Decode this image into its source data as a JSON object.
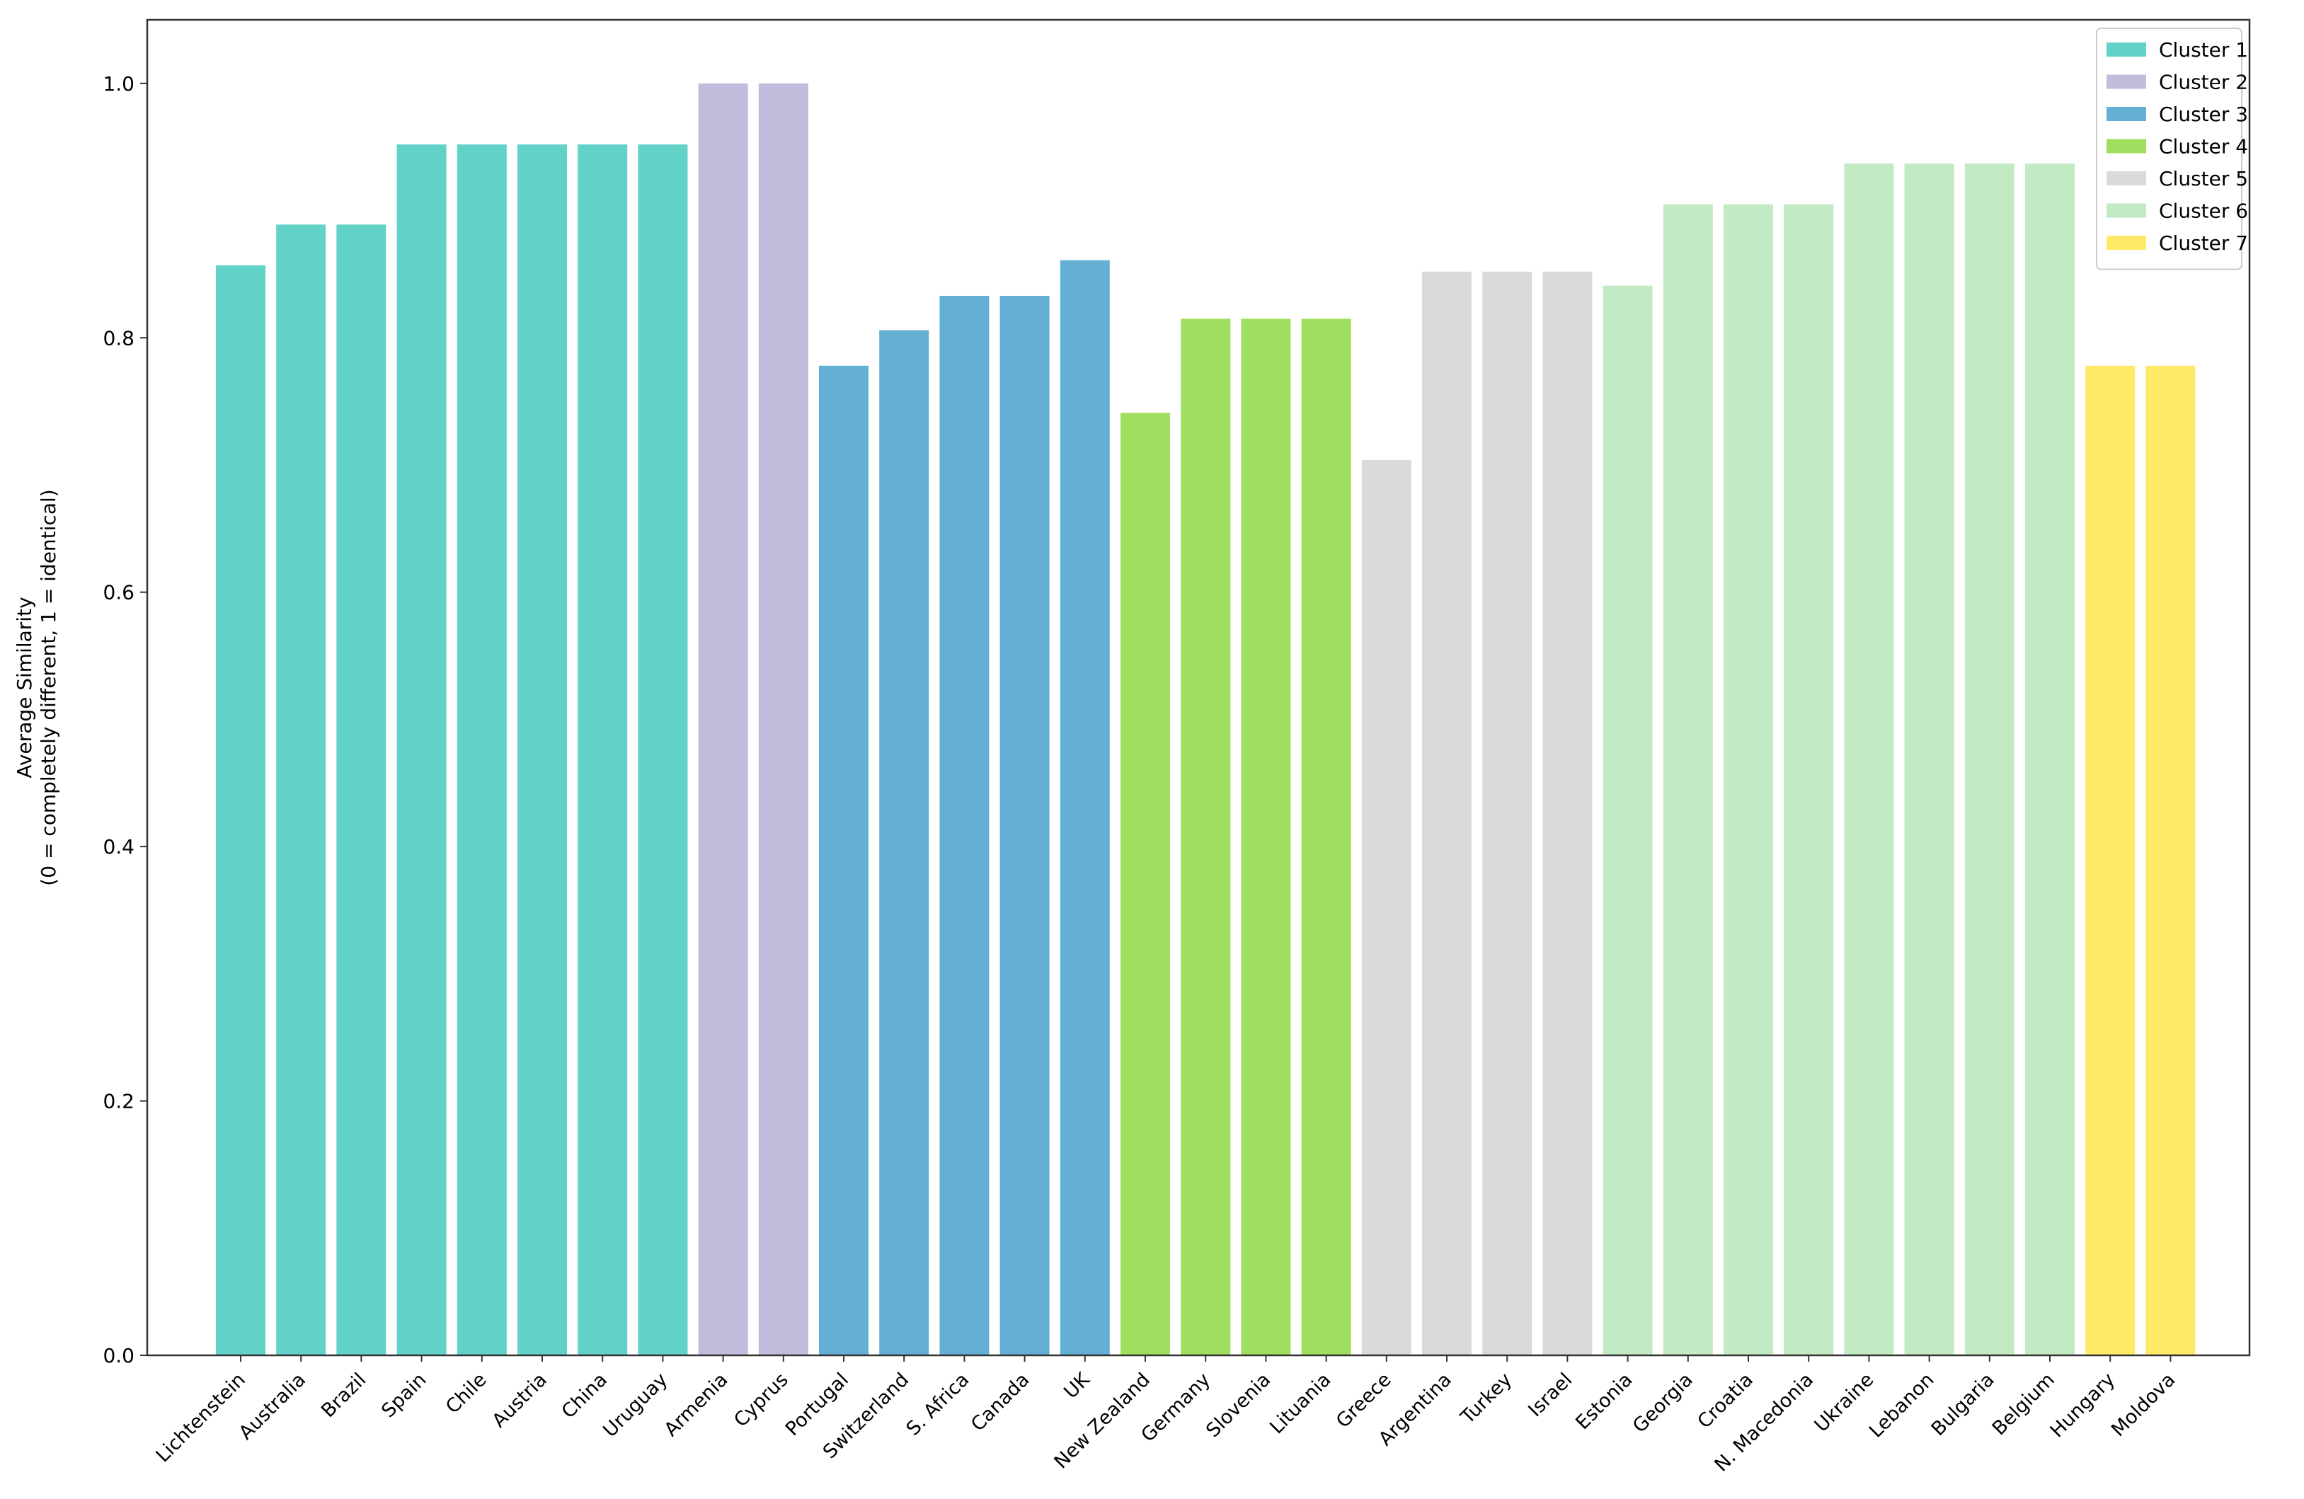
{
  "chart_data": {
    "type": "bar",
    "title": "",
    "xlabel": "",
    "ylabel_line1": "Average Similarity",
    "ylabel_line2": "(0 = completely different, 1 = identical)",
    "ylim": [
      0,
      1.05
    ],
    "yticks": [
      "0.0",
      "0.2",
      "0.4",
      "0.6",
      "0.8",
      "1.0"
    ],
    "ytick_values": [
      0,
      0.2,
      0.4,
      0.6,
      0.8,
      1.0
    ],
    "grid": false,
    "legend_position": "top-right",
    "clusters": [
      {
        "name": "Cluster 1",
        "color": "#62d2c8"
      },
      {
        "name": "Cluster 2",
        "color": "#c0bcdc"
      },
      {
        "name": "Cluster 3",
        "color": "#63b0d4"
      },
      {
        "name": "Cluster 4",
        "color": "#a0de60"
      },
      {
        "name": "Cluster 5",
        "color": "#dadada"
      },
      {
        "name": "Cluster 6",
        "color": "#c2ebc4"
      },
      {
        "name": "Cluster 7",
        "color": "#ffe967"
      }
    ],
    "bars": [
      {
        "category": "Lichtenstein",
        "value": 0.857,
        "cluster": 0
      },
      {
        "category": "Australia",
        "value": 0.889,
        "cluster": 0
      },
      {
        "category": "Brazil",
        "value": 0.889,
        "cluster": 0
      },
      {
        "category": "Spain",
        "value": 0.952,
        "cluster": 0
      },
      {
        "category": "Chile",
        "value": 0.952,
        "cluster": 0
      },
      {
        "category": "Austria",
        "value": 0.952,
        "cluster": 0
      },
      {
        "category": "China",
        "value": 0.952,
        "cluster": 0
      },
      {
        "category": "Uruguay",
        "value": 0.952,
        "cluster": 0
      },
      {
        "category": "Armenia",
        "value": 1.0,
        "cluster": 1
      },
      {
        "category": "Cyprus",
        "value": 1.0,
        "cluster": 1
      },
      {
        "category": "Portugal",
        "value": 0.778,
        "cluster": 2
      },
      {
        "category": "Switzerland",
        "value": 0.806,
        "cluster": 2
      },
      {
        "category": "S. Africa",
        "value": 0.833,
        "cluster": 2
      },
      {
        "category": "Canada",
        "value": 0.833,
        "cluster": 2
      },
      {
        "category": "UK",
        "value": 0.861,
        "cluster": 2
      },
      {
        "category": "New Zealand",
        "value": 0.741,
        "cluster": 3
      },
      {
        "category": "Germany",
        "value": 0.815,
        "cluster": 3
      },
      {
        "category": "Slovenia",
        "value": 0.815,
        "cluster": 3
      },
      {
        "category": "Lituania",
        "value": 0.815,
        "cluster": 3
      },
      {
        "category": "Greece",
        "value": 0.704,
        "cluster": 4
      },
      {
        "category": "Argentina",
        "value": 0.852,
        "cluster": 4
      },
      {
        "category": "Turkey",
        "value": 0.852,
        "cluster": 4
      },
      {
        "category": "Israel",
        "value": 0.852,
        "cluster": 4
      },
      {
        "category": "Estonia",
        "value": 0.841,
        "cluster": 5
      },
      {
        "category": "Georgia",
        "value": 0.905,
        "cluster": 5
      },
      {
        "category": "Croatia",
        "value": 0.905,
        "cluster": 5
      },
      {
        "category": "N. Macedonia",
        "value": 0.905,
        "cluster": 5
      },
      {
        "category": "Ukraine",
        "value": 0.937,
        "cluster": 5
      },
      {
        "category": "Lebanon",
        "value": 0.937,
        "cluster": 5
      },
      {
        "category": "Bulgaria",
        "value": 0.937,
        "cluster": 5
      },
      {
        "category": "Belgium",
        "value": 0.937,
        "cluster": 5
      },
      {
        "category": "Hungary",
        "value": 0.778,
        "cluster": 6
      },
      {
        "category": "Moldova",
        "value": 0.778,
        "cluster": 6
      }
    ]
  }
}
